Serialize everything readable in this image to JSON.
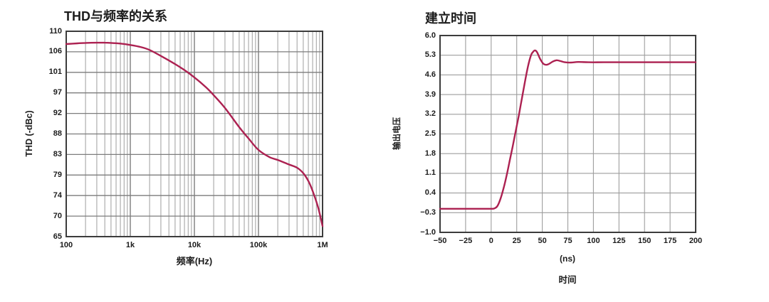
{
  "style": {
    "background": "#ffffff",
    "curve_color": "#AC2151",
    "grid_minor_color": "#9d9d9d",
    "grid_major_color": "#7c7c7c",
    "border_color": "#3c3c3c",
    "text_color": "#1c1c1c"
  },
  "chart_data": [
    {
      "type": "line",
      "title": "THD与频率的关系",
      "xlabel": "频率(Hz)",
      "ylabel": "THD (-dBc)",
      "x_scale": "log",
      "xlim": [
        100,
        1000000
      ],
      "ylim": [
        65,
        110
      ],
      "grid": "on",
      "legend": "none",
      "x_tick_values": [
        100,
        1000,
        10000,
        100000,
        1000000
      ],
      "x_tick_labels": [
        "100",
        "1k",
        "10k",
        "100k",
        "1M"
      ],
      "y_tick_labels": [
        "110",
        "106",
        "101",
        "97",
        "92",
        "88",
        "83",
        "79",
        "74",
        "70",
        "65"
      ],
      "series": [
        {
          "name": "THD",
          "x": [
            100,
            150,
            200,
            300,
            400,
            500,
            700,
            1000,
            1500,
            2000,
            3000,
            5000,
            7000,
            10000,
            15000,
            20000,
            30000,
            50000,
            70000,
            100000,
            150000,
            200000,
            300000,
            400000,
            500000,
            600000,
            700000,
            850000,
            1000000
          ],
          "y": [
            107.2,
            107.35,
            107.45,
            107.5,
            107.5,
            107.45,
            107.3,
            107.0,
            106.5,
            105.9,
            104.6,
            102.8,
            101.5,
            99.9,
            97.8,
            96.0,
            93.2,
            89.0,
            86.5,
            84.0,
            82.4,
            81.8,
            80.8,
            80.1,
            78.9,
            77.2,
            75.0,
            71.5,
            67.3
          ]
        }
      ]
    },
    {
      "type": "line",
      "title": "建立时间",
      "xlabel_unit": "(ns)",
      "xlabel": "时间",
      "ylabel": "输出电压",
      "x_scale": "linear",
      "xlim": [
        -50,
        200
      ],
      "ylim": [
        -1.0,
        6.0
      ],
      "grid": "on",
      "legend": "none",
      "x_tick_values": [
        -50,
        -25,
        0,
        25,
        50,
        75,
        100,
        125,
        150,
        175,
        200
      ],
      "x_tick_labels": [
        "−50",
        "−25",
        "0",
        "25",
        "50",
        "75",
        "100",
        "125",
        "150",
        "175",
        "200"
      ],
      "y_tick_labels": [
        "6.0",
        "5.3",
        "4.6",
        "3.9",
        "3.2",
        "2.5",
        "1.8",
        "1.1",
        "0.4",
        "−0.3",
        "−1.0"
      ],
      "series": [
        {
          "name": "输出电压",
          "x": [
            -50,
            -40,
            -30,
            -20,
            -10,
            0,
            3,
            6,
            9,
            12,
            15,
            18,
            21,
            24,
            27,
            30,
            33,
            36,
            39,
            41,
            43,
            45,
            48,
            51,
            54,
            57,
            60,
            64,
            68,
            72,
            78,
            85,
            95,
            110,
            130,
            150,
            175,
            200
          ],
          "y": [
            -0.16,
            -0.16,
            -0.16,
            -0.16,
            -0.16,
            -0.16,
            -0.15,
            -0.07,
            0.18,
            0.55,
            1.0,
            1.52,
            2.05,
            2.6,
            3.15,
            3.75,
            4.35,
            4.9,
            5.3,
            5.42,
            5.47,
            5.4,
            5.16,
            5.0,
            4.96,
            5.0,
            5.07,
            5.12,
            5.09,
            5.05,
            5.04,
            5.06,
            5.05,
            5.05,
            5.05,
            5.05,
            5.05,
            5.05
          ]
        }
      ]
    }
  ]
}
